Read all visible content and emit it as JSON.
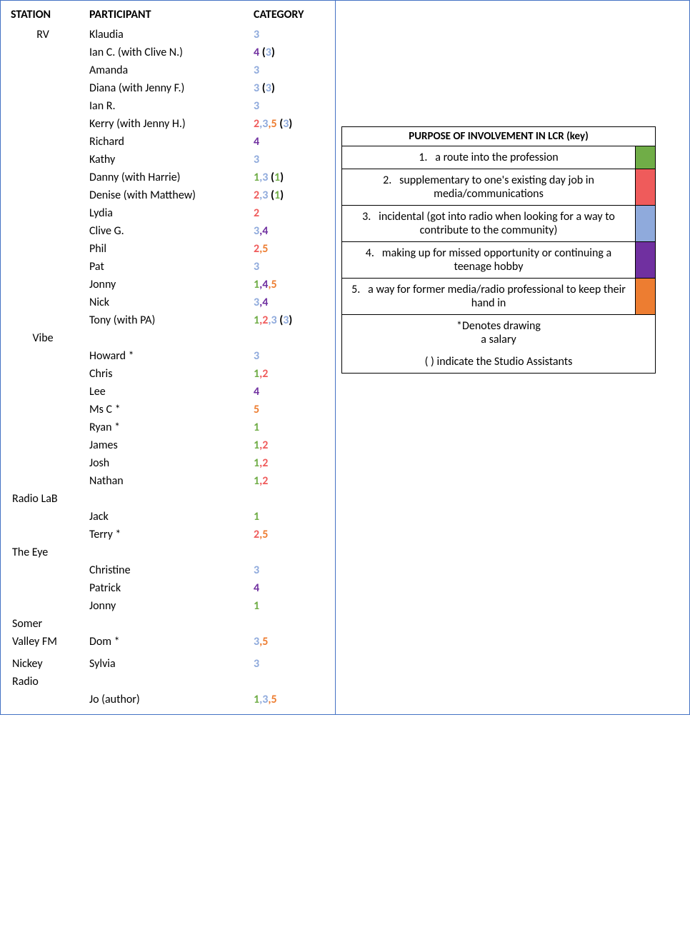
{
  "headers": {
    "station": "STATION",
    "participant": "PARTICIPANT",
    "category": "CATEGORY"
  },
  "colors": {
    "c1": "#70ad47",
    "c2": "#ef5b5b",
    "c3": "#8faadc",
    "c4": "#7030a0",
    "c5": "#ed7d31",
    "border": "#4472c4",
    "black": "#000000"
  },
  "rows": [
    {
      "station": "RV",
      "participant": "Klaudia",
      "cats": [
        3
      ]
    },
    {
      "station": "",
      "participant": "Ian C. (with Clive N.)",
      "cats": [
        4
      ],
      "paren": [
        3
      ]
    },
    {
      "station": "",
      "participant": "Amanda",
      "cats": [
        3
      ]
    },
    {
      "station": "",
      "participant": "Diana (with Jenny F.)",
      "cats": [
        3
      ],
      "paren": [
        3
      ]
    },
    {
      "station": "",
      "participant": "Ian R.",
      "cats": [
        3
      ]
    },
    {
      "station": "",
      "participant": "Kerry (with Jenny H.)",
      "cats": [
        2,
        3,
        5
      ],
      "paren": [
        3
      ]
    },
    {
      "station": "",
      "participant": "Richard",
      "cats": [
        4
      ]
    },
    {
      "station": "",
      "participant": "Kathy",
      "cats": [
        3
      ]
    },
    {
      "station": "",
      "participant": "Danny (with Harrie)",
      "cats": [
        1,
        3
      ],
      "paren": [
        1
      ]
    },
    {
      "station": "",
      "participant": "Denise (with Matthew)",
      "cats": [
        2,
        3
      ],
      "paren": [
        1
      ]
    },
    {
      "station": "",
      "participant": "Lydia",
      "cats": [
        2
      ]
    },
    {
      "station": "",
      "participant": "Clive G.",
      "cats": [
        3,
        4
      ]
    },
    {
      "station": "",
      "participant": "Phil",
      "cats": [
        2,
        5
      ]
    },
    {
      "station": "",
      "participant": "Pat",
      "cats": [
        3
      ]
    },
    {
      "station": "",
      "participant": "Jonny",
      "cats": [
        1,
        4,
        5
      ]
    },
    {
      "station": "",
      "participant": "Nick",
      "cats": [
        3,
        4
      ]
    },
    {
      "station": "",
      "participant": "Tony (with PA)",
      "cats": [
        1,
        2,
        3
      ],
      "paren": [
        3
      ]
    },
    {
      "station": "Vibe",
      "participant": "",
      "cats": []
    },
    {
      "station": "",
      "participant": "Howard *",
      "cats": [
        3
      ]
    },
    {
      "station": "",
      "participant": "Chris",
      "cats": [
        1,
        2
      ]
    },
    {
      "station": "",
      "participant": "Lee",
      "cats": [
        4
      ]
    },
    {
      "station": "",
      "participant": "Ms C *",
      "cats": [
        5
      ]
    },
    {
      "station": "",
      "participant": "Ryan *",
      "cats": [
        1
      ]
    },
    {
      "station": "",
      "participant": "James",
      "cats": [
        1,
        2
      ]
    },
    {
      "station": "",
      "participant": "Josh",
      "cats": [
        1,
        2
      ]
    },
    {
      "station": "",
      "participant": "Nathan",
      "cats": [
        1,
        2
      ]
    },
    {
      "station": "Radio LaB",
      "participant": "",
      "cats": [],
      "stationAlign": "left"
    },
    {
      "station": "",
      "participant": "Jack",
      "cats": [
        1
      ]
    },
    {
      "station": "",
      "participant": "Terry *",
      "cats": [
        2,
        5
      ]
    },
    {
      "station": "The Eye",
      "participant": "",
      "cats": [],
      "stationAlign": "left"
    },
    {
      "station": "",
      "participant": "Christine",
      "cats": [
        3
      ]
    },
    {
      "station": "",
      "participant": "Patrick",
      "cats": [
        4
      ]
    },
    {
      "station": "",
      "participant": "Jonny",
      "cats": [
        1
      ]
    },
    {
      "station": "Somer",
      "participant": "",
      "cats": [],
      "stationAlign": "left"
    },
    {
      "station": "Valley FM",
      "participant": "Dom *",
      "cats": [
        3,
        5
      ],
      "stationAlign": "left"
    },
    {
      "station": "",
      "participant": "",
      "cats": []
    },
    {
      "station": "Nickey",
      "participant": "Sylvia",
      "cats": [
        3
      ],
      "stationAlign": "left"
    },
    {
      "station": "Radio",
      "participant": "",
      "cats": [],
      "stationAlign": "left"
    },
    {
      "station": "",
      "participant": "Jo (author)",
      "cats": [
        1,
        3,
        5
      ]
    }
  ],
  "legend": {
    "title": "PURPOSE OF INVOLVEMENT IN LCR (key)",
    "items": [
      {
        "num": "1.",
        "text": "a route into the profession",
        "colorKey": "c1"
      },
      {
        "num": "2.",
        "text": "supplementary to one's existing day job in media/communications",
        "colorKey": "c2"
      },
      {
        "num": "3.",
        "text": "incidental (got into radio when looking for a way to contribute to the community)",
        "colorKey": "c3"
      },
      {
        "num": "4.",
        "text": "making up for missed opportunity or continuing a teenage hobby",
        "colorKey": "c4"
      },
      {
        "num": "5.",
        "text": "a way for former media/radio professional to keep their hand in",
        "colorKey": "c5"
      }
    ],
    "footer1": "*Denotes drawing",
    "footer2": "a salary",
    "footer3": "( ) indicate the Studio Assistants"
  }
}
